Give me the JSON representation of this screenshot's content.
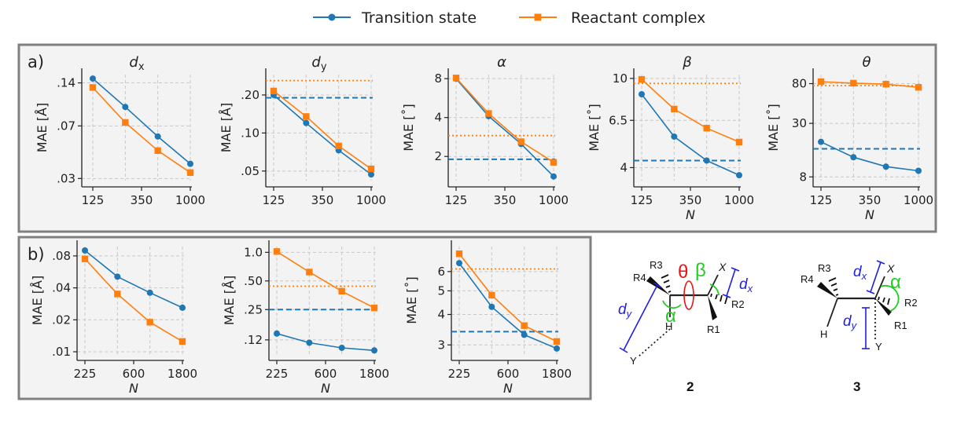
{
  "colors": {
    "transition_state": "#1f77b4",
    "reactant_complex": "#ff7f0e",
    "panel_bg": "#f3f3f3",
    "panel_border": "#808080",
    "grid": "#c8c8c8",
    "alpha_green": "#22cc22",
    "theta_red": "#ee1111",
    "dist_blue": "#1f1fe0"
  },
  "legend": {
    "transition_state": "Transition state",
    "reactant_complex": "Reactant complex"
  },
  "panels": {
    "a": {
      "label": "a)"
    },
    "b": {
      "label": "b)"
    }
  },
  "chart_data": [
    {
      "id": "a-dx",
      "panel": "a",
      "type": "line",
      "scale": "log",
      "title": "d",
      "title_sub": "x",
      "ylabel": "MAE [Å]",
      "xlabel": "",
      "x": [
        125,
        250,
        500,
        1000
      ],
      "xticks": [
        "125",
        "350",
        "1000"
      ],
      "ylim": [
        0.029,
        0.16
      ],
      "yticks": [
        0.03,
        0.07,
        0.14
      ],
      "ytick_labels": [
        ".03",
        ".07",
        ".14"
      ],
      "series": [
        {
          "name": "Transition state",
          "values": [
            0.15,
            0.095,
            0.059,
            0.038
          ]
        },
        {
          "name": "Reactant complex",
          "values": [
            0.13,
            0.074,
            0.047,
            0.033
          ]
        }
      ],
      "hlines": []
    },
    {
      "id": "a-dy",
      "panel": "a",
      "type": "line",
      "scale": "log",
      "title": "d",
      "title_sub": "y",
      "ylabel": "MAE [Å]",
      "xlabel": "",
      "x": [
        125,
        250,
        500,
        1000
      ],
      "xticks": [
        "125",
        "350",
        "1000"
      ],
      "ylim": [
        0.042,
        0.29
      ],
      "yticks": [
        0.05,
        0.1,
        0.2
      ],
      "ytick_labels": [
        ".05",
        ".10",
        ".20"
      ],
      "series": [
        {
          "name": "Transition state",
          "values": [
            0.2,
            0.12,
            0.073,
            0.047
          ]
        },
        {
          "name": "Reactant complex",
          "values": [
            0.215,
            0.135,
            0.079,
            0.052
          ]
        }
      ],
      "hlines": [
        {
          "series": "Reactant complex",
          "value": 0.26,
          "style": "dotted"
        },
        {
          "series": "Transition state",
          "value": 0.19,
          "style": "dashed"
        }
      ]
    },
    {
      "id": "a-alpha",
      "panel": "a",
      "type": "line",
      "scale": "log",
      "title": "α",
      "title_sub": "",
      "ylabel": "MAE [˚]",
      "xlabel": "",
      "x": [
        125,
        250,
        500,
        1000
      ],
      "xticks": [
        "125",
        "350",
        "1000"
      ],
      "ylim": [
        1.3,
        8.6
      ],
      "yticks": [
        2,
        4,
        8
      ],
      "ytick_labels": [
        "2",
        "4",
        "8"
      ],
      "series": [
        {
          "name": "Transition state",
          "values": [
            8.0,
            4.1,
            2.5,
            1.4
          ]
        },
        {
          "name": "Reactant complex",
          "values": [
            8.1,
            4.3,
            2.6,
            1.8
          ]
        }
      ],
      "hlines": [
        {
          "series": "Reactant complex",
          "value": 2.9,
          "style": "dotted"
        },
        {
          "series": "Transition state",
          "value": 1.9,
          "style": "dashed"
        }
      ]
    },
    {
      "id": "a-beta",
      "panel": "a",
      "type": "line",
      "scale": "log",
      "title": "β",
      "title_sub": "",
      "ylabel": "MAE [˚]",
      "xlabel": "N",
      "x": [
        125,
        250,
        500,
        1000
      ],
      "xticks": [
        "125",
        "350",
        "1000"
      ],
      "ylim": [
        3.5,
        10.4
      ],
      "yticks": [
        4,
        6.5,
        10
      ],
      "ytick_labels": [
        "4",
        "6.5",
        "10"
      ],
      "series": [
        {
          "name": "Transition state",
          "values": [
            8.5,
            5.5,
            4.3,
            3.7
          ]
        },
        {
          "name": "Reactant complex",
          "values": [
            9.9,
            7.3,
            6.0,
            5.2
          ]
        }
      ],
      "hlines": [
        {
          "series": "Reactant complex",
          "value": 9.5,
          "style": "dotted"
        },
        {
          "series": "Transition state",
          "value": 4.3,
          "style": "dashed"
        }
      ]
    },
    {
      "id": "a-theta",
      "panel": "a",
      "type": "line",
      "scale": "log",
      "title": "θ",
      "title_sub": "",
      "ylabel": "MAE [˚]",
      "xlabel": "N",
      "x": [
        125,
        250,
        500,
        1000
      ],
      "xticks": [
        "125",
        "350",
        "1000"
      ],
      "ylim": [
        7.3,
        100
      ],
      "yticks": [
        8,
        30,
        80
      ],
      "ytick_labels": [
        "8",
        "30",
        "80"
      ],
      "series": [
        {
          "name": "Transition state",
          "values": [
            19,
            13,
            10.3,
            9.3
          ]
        },
        {
          "name": "Reactant complex",
          "values": [
            84,
            81,
            79,
            73
          ]
        }
      ],
      "hlines": [
        {
          "series": "Reactant complex",
          "value": 76,
          "style": "dotted"
        },
        {
          "series": "Transition state",
          "value": 16,
          "style": "dashed"
        }
      ]
    },
    {
      "id": "b-dx",
      "panel": "b",
      "type": "line",
      "scale": "log",
      "title": "",
      "title_sub": "",
      "ylabel": "MAE [Å]",
      "xlabel": "N",
      "x": [
        225,
        450,
        900,
        1800
      ],
      "xticks": [
        "225",
        "600",
        "1800"
      ],
      "ylim": [
        0.0095,
        0.098
      ],
      "yticks": [
        0.01,
        0.02,
        0.04,
        0.08
      ],
      "ytick_labels": [
        ".01",
        ".02",
        ".04",
        ".08"
      ],
      "series": [
        {
          "name": "Transition state",
          "values": [
            0.09,
            0.051,
            0.036,
            0.026
          ]
        },
        {
          "name": "Reactant complex",
          "values": [
            0.075,
            0.035,
            0.019,
            0.0125
          ]
        }
      ],
      "hlines": []
    },
    {
      "id": "b-dy",
      "panel": "b",
      "type": "line",
      "scale": "log",
      "title": "",
      "title_sub": "",
      "ylabel": "MAE [Å]",
      "xlabel": "N",
      "x": [
        225,
        450,
        900,
        1800
      ],
      "xticks": [
        "225",
        "600",
        "1800"
      ],
      "ylim": [
        0.085,
        1.15
      ],
      "yticks": [
        0.12,
        0.25,
        0.5,
        1.0
      ],
      "ytick_labels": [
        ".12",
        ".25",
        ".50",
        "1.0"
      ],
      "series": [
        {
          "name": "Transition state",
          "values": [
            0.14,
            0.112,
            0.099,
            0.093
          ]
        },
        {
          "name": "Reactant complex",
          "values": [
            1.02,
            0.62,
            0.39,
            0.26
          ]
        }
      ],
      "hlines": [
        {
          "series": "Reactant complex",
          "value": 0.44,
          "style": "dotted"
        },
        {
          "series": "Transition state",
          "value": 0.25,
          "style": "dashed"
        }
      ]
    },
    {
      "id": "b-alpha",
      "panel": "b",
      "type": "line",
      "scale": "log",
      "title": "",
      "title_sub": "",
      "ylabel": "MAE [˚]",
      "xlabel": "N",
      "x": [
        225,
        450,
        900,
        1800
      ],
      "xticks": [
        "225",
        "600",
        "1800"
      ],
      "ylim": [
        2.75,
        7.6
      ],
      "yticks": [
        3,
        4,
        5,
        6
      ],
      "ytick_labels": [
        "3",
        "4",
        "5",
        "6"
      ],
      "series": [
        {
          "name": "Transition state",
          "values": [
            6.5,
            4.3,
            3.3,
            2.9
          ]
        },
        {
          "name": "Reactant complex",
          "values": [
            7.1,
            4.8,
            3.6,
            3.1
          ]
        }
      ],
      "hlines": [
        {
          "series": "Reactant complex",
          "value": 6.15,
          "style": "dotted"
        },
        {
          "series": "Transition state",
          "value": 3.4,
          "style": "dashed"
        }
      ]
    }
  ],
  "structures": {
    "s2": {
      "number": "2",
      "labels": {
        "r3": "R3",
        "r4": "R4",
        "h": "H",
        "y": "Y",
        "x": "X",
        "r2": "R2",
        "r1": "R1",
        "theta": "θ",
        "beta": "β",
        "alpha": "α",
        "dx": "d",
        "dx_sub": "x",
        "dy": "d",
        "dy_sub": "y"
      }
    },
    "s3": {
      "number": "3",
      "labels": {
        "r3": "R3",
        "r4": "R4",
        "h": "H",
        "y": "Y",
        "x": "X",
        "r2": "R2",
        "r1": "R1",
        "alpha": "α",
        "dx": "d",
        "dx_sub": "x",
        "dy": "d",
        "dy_sub": "y"
      }
    }
  }
}
